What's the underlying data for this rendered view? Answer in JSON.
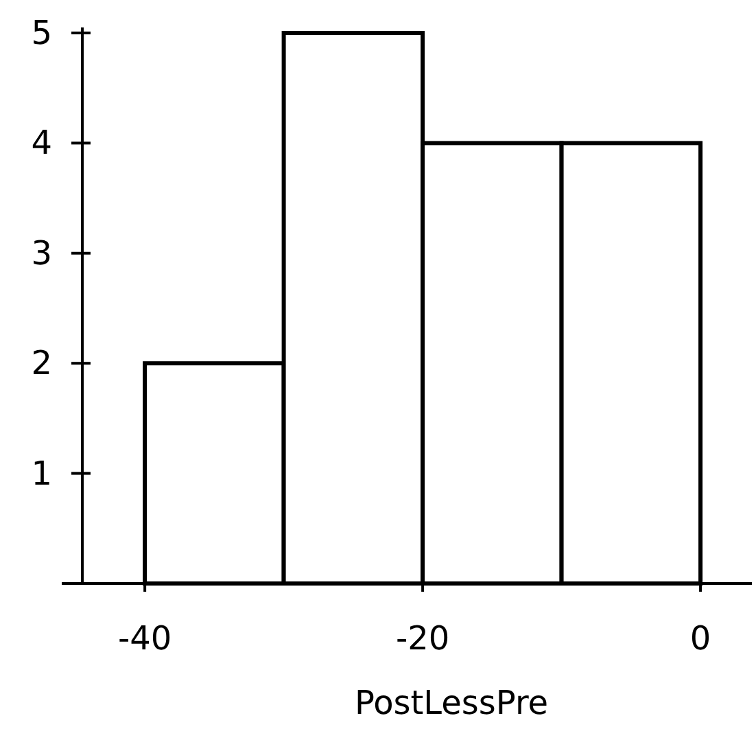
{
  "chart_data": {
    "type": "histogram",
    "xlabel": "PostLessPre",
    "bins": [
      -40,
      -30,
      -20,
      -10,
      0
    ],
    "values": [
      2,
      5,
      4,
      4
    ],
    "color": "#ffffff",
    "xlim": [
      -44.5,
      3.7
    ],
    "xticks": [
      -40,
      -20,
      0
    ],
    "ylim": [
      0,
      5.05
    ],
    "yticks": [
      1,
      2,
      3,
      4,
      5
    ],
    "grid": false
  }
}
